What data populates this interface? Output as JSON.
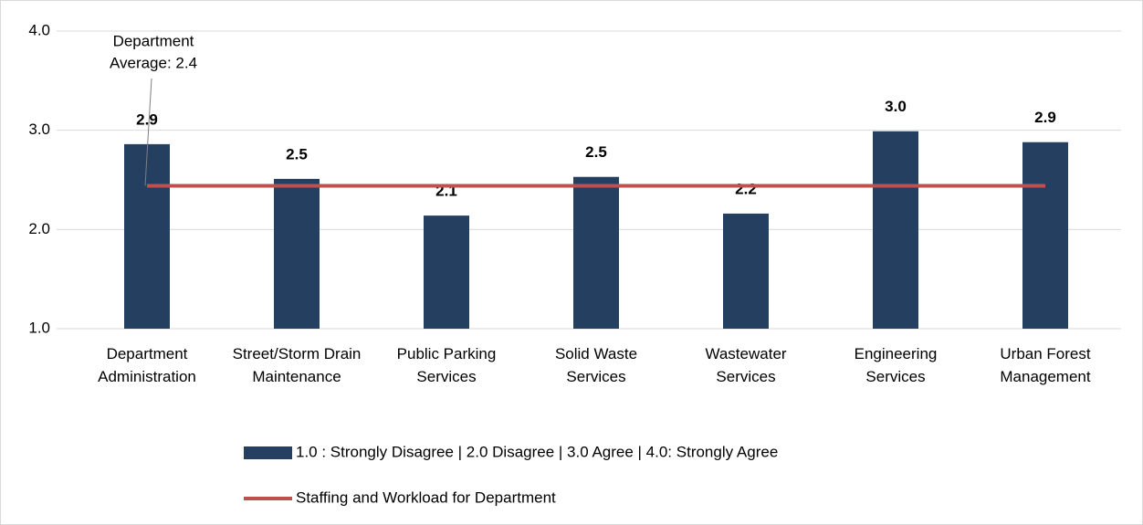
{
  "chart_data": {
    "type": "bar",
    "categories": [
      "Department Administration",
      "Street/Storm Drain Maintenance",
      "Public Parking Services",
      "Solid Waste Services",
      "Wastewater Services",
      "Engineering Services",
      "Urban Forest Management"
    ],
    "series": [
      {
        "name": "1.0 : Strongly Disagree | 2.0 Disagree | 3.0 Agree | 4.0: Strongly Agree",
        "type": "bar",
        "color": "#253f60",
        "values": [
          2.86,
          2.51,
          2.14,
          2.53,
          2.16,
          2.99,
          2.88
        ],
        "value_labels": [
          "2.9",
          "2.5",
          "2.1",
          "2.5",
          "2.2",
          "3.0",
          "2.9"
        ]
      },
      {
        "name": "Staffing and Workload for Department",
        "type": "line",
        "color": "#c0504d",
        "values": [
          2.44,
          2.44,
          2.44,
          2.44,
          2.44,
          2.44,
          2.44
        ]
      }
    ],
    "annotation": [
      "Department",
      "Average: 2.4"
    ],
    "ylim": [
      1.0,
      4.0
    ],
    "yticks": [
      {
        "value": 1,
        "label": "1.0"
      },
      {
        "value": 2,
        "label": "2.0"
      },
      {
        "value": 3,
        "label": "3.0"
      },
      {
        "value": 4,
        "label": "4.0"
      }
    ],
    "grid": true
  }
}
